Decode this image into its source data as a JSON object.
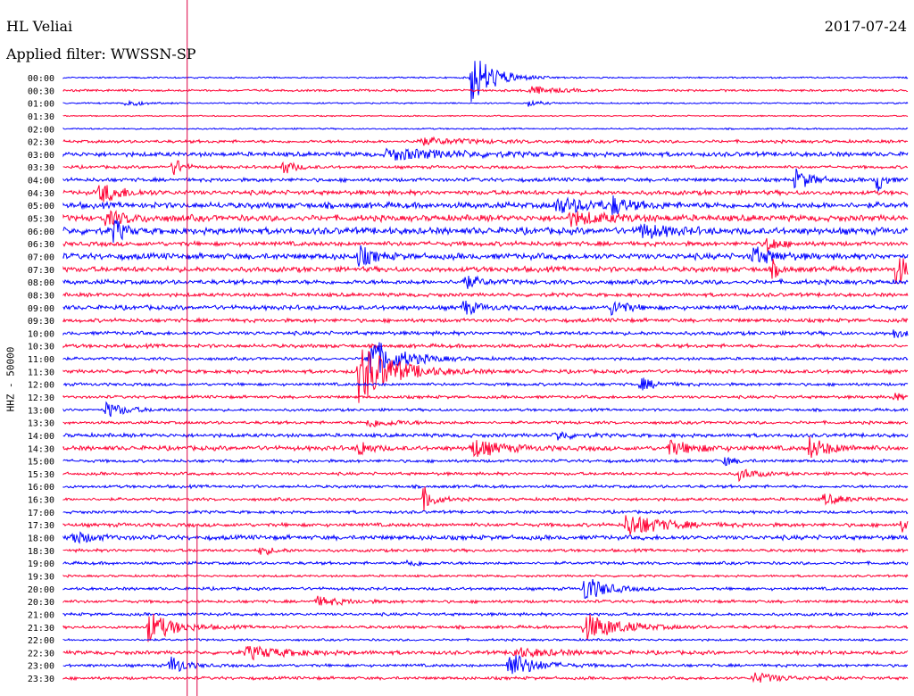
{
  "header": {
    "station": "HL Veliai",
    "date": "2017-07-24",
    "filter": "Applied filter: WWSSN-SP"
  },
  "colors": {
    "even_trace": "#0000ff",
    "odd_trace": "#ff0033",
    "marker": "#dd0044",
    "text": "#000000"
  },
  "chart_data": {
    "type": "line",
    "ylabel": "HHZ - 50000",
    "x_range_minutes": [
      0,
      30
    ],
    "row_labels": [
      "00:00",
      "00:30",
      "01:00",
      "01:30",
      "02:00",
      "02:30",
      "03:00",
      "03:30",
      "04:00",
      "04:30",
      "05:00",
      "05:30",
      "06:00",
      "06:30",
      "07:00",
      "07:30",
      "08:00",
      "08:30",
      "09:00",
      "09:30",
      "10:00",
      "10:30",
      "11:00",
      "11:30",
      "12:00",
      "12:30",
      "13:00",
      "13:30",
      "14:00",
      "14:30",
      "15:00",
      "15:30",
      "16:00",
      "16:30",
      "17:00",
      "17:30",
      "18:00",
      "18:30",
      "19:00",
      "19:30",
      "20:00",
      "20:30",
      "21:00",
      "21:30",
      "22:00",
      "22:30",
      "23:00",
      "23:30"
    ],
    "noise_levels": [
      1,
      1.5,
      1,
      0.8,
      1,
      2,
      3,
      2,
      2.5,
      3,
      4,
      4,
      4.5,
      3,
      4,
      3.5,
      3,
      2.5,
      3,
      2.5,
      2.5,
      2.5,
      2,
      2.5,
      2,
      2,
      1.8,
      2,
      2.5,
      3,
      2,
      2,
      2,
      2,
      2,
      2.5,
      3,
      2,
      2,
      1.5,
      2,
      2,
      2,
      2,
      1.5,
      2.5,
      2,
      2
    ],
    "events": [
      {
        "row": 0,
        "minute": 14.5,
        "amp": 32,
        "dur": 1.6
      },
      {
        "row": 1,
        "minute": 16.5,
        "amp": 5,
        "dur": 2
      },
      {
        "row": 2,
        "minute": 2.2,
        "amp": 5,
        "dur": 1
      },
      {
        "row": 2,
        "minute": 16.5,
        "amp": 4,
        "dur": 0.8
      },
      {
        "row": 5,
        "minute": 12.5,
        "amp": 4,
        "dur": 4
      },
      {
        "row": 6,
        "minute": 11.5,
        "amp": 6,
        "dur": 5
      },
      {
        "row": 7,
        "minute": 3.9,
        "amp": 12,
        "dur": 0.6
      },
      {
        "row": 7,
        "minute": 7.8,
        "amp": 9,
        "dur": 0.8
      },
      {
        "row": 8,
        "minute": 26,
        "amp": 12,
        "dur": 1.2
      },
      {
        "row": 8,
        "minute": 28.9,
        "amp": 16,
        "dur": 0.5
      },
      {
        "row": 9,
        "minute": 1.3,
        "amp": 12,
        "dur": 1.5
      },
      {
        "row": 10,
        "minute": 17.5,
        "amp": 8,
        "dur": 3
      },
      {
        "row": 10,
        "minute": 19.5,
        "amp": 9,
        "dur": 1
      },
      {
        "row": 11,
        "minute": 1.5,
        "amp": 7,
        "dur": 2
      },
      {
        "row": 11,
        "minute": 18,
        "amp": 7,
        "dur": 3
      },
      {
        "row": 12,
        "minute": 1.8,
        "amp": 16,
        "dur": 0.6
      },
      {
        "row": 12,
        "minute": 20.5,
        "amp": 8,
        "dur": 2
      },
      {
        "row": 13,
        "minute": 25,
        "amp": 10,
        "dur": 0.8
      },
      {
        "row": 14,
        "minute": 10.5,
        "amp": 12,
        "dur": 1
      },
      {
        "row": 14,
        "minute": 24.5,
        "amp": 10,
        "dur": 1.5
      },
      {
        "row": 15,
        "minute": 25.2,
        "amp": 10,
        "dur": 0.5
      },
      {
        "row": 15,
        "minute": 29.6,
        "amp": 24,
        "dur": 0.6
      },
      {
        "row": 16,
        "minute": 14.2,
        "amp": 8,
        "dur": 1.2
      },
      {
        "row": 18,
        "minute": 14.2,
        "amp": 9,
        "dur": 1
      },
      {
        "row": 18,
        "minute": 19.5,
        "amp": 10,
        "dur": 1
      },
      {
        "row": 20,
        "minute": 29.5,
        "amp": 5,
        "dur": 1
      },
      {
        "row": 22,
        "minute": 10.8,
        "amp": 26,
        "dur": 2.2
      },
      {
        "row": 23,
        "minute": 10.5,
        "amp": 36,
        "dur": 2.4
      },
      {
        "row": 24,
        "minute": 20.5,
        "amp": 7,
        "dur": 1.2
      },
      {
        "row": 25,
        "minute": 29.5,
        "amp": 5,
        "dur": 0.6
      },
      {
        "row": 26,
        "minute": 1.5,
        "amp": 9,
        "dur": 1.5
      },
      {
        "row": 27,
        "minute": 10.8,
        "amp": 5,
        "dur": 2
      },
      {
        "row": 28,
        "minute": 17.5,
        "amp": 6,
        "dur": 1
      },
      {
        "row": 29,
        "minute": 10.5,
        "amp": 10,
        "dur": 0.8
      },
      {
        "row": 29,
        "minute": 14.5,
        "amp": 11,
        "dur": 2
      },
      {
        "row": 29,
        "minute": 21.5,
        "amp": 8,
        "dur": 2
      },
      {
        "row": 29,
        "minute": 26.5,
        "amp": 12,
        "dur": 1.5
      },
      {
        "row": 30,
        "minute": 23.5,
        "amp": 5,
        "dur": 0.8
      },
      {
        "row": 31,
        "minute": 24,
        "amp": 7,
        "dur": 1.2
      },
      {
        "row": 33,
        "minute": 12.8,
        "amp": 14,
        "dur": 0.8
      },
      {
        "row": 33,
        "minute": 27,
        "amp": 6,
        "dur": 1.5
      },
      {
        "row": 35,
        "minute": 20,
        "amp": 14,
        "dur": 2.5
      },
      {
        "row": 35,
        "minute": 29.8,
        "amp": 8,
        "dur": 0.5
      },
      {
        "row": 36,
        "minute": 0.3,
        "amp": 7,
        "dur": 1.5
      },
      {
        "row": 37,
        "minute": 7,
        "amp": 5,
        "dur": 1
      },
      {
        "row": 38,
        "minute": 12.2,
        "amp": 4,
        "dur": 1
      },
      {
        "row": 40,
        "minute": 18.5,
        "amp": 16,
        "dur": 1.5
      },
      {
        "row": 41,
        "minute": 9,
        "amp": 5,
        "dur": 2
      },
      {
        "row": 43,
        "minute": 3,
        "amp": 18,
        "dur": 1.8
      },
      {
        "row": 43,
        "minute": 18.5,
        "amp": 16,
        "dur": 2.5
      },
      {
        "row": 45,
        "minute": 6.5,
        "amp": 7,
        "dur": 3
      },
      {
        "row": 45,
        "minute": 16,
        "amp": 5,
        "dur": 3
      },
      {
        "row": 46,
        "minute": 3.8,
        "amp": 12,
        "dur": 1
      },
      {
        "row": 46,
        "minute": 15.8,
        "amp": 16,
        "dur": 1.8
      },
      {
        "row": 47,
        "minute": 24.5,
        "amp": 6,
        "dur": 2
      }
    ],
    "markers": [
      {
        "minute": 4.4,
        "style": "full"
      },
      {
        "minute": 4.75,
        "style": "lower"
      }
    ]
  }
}
